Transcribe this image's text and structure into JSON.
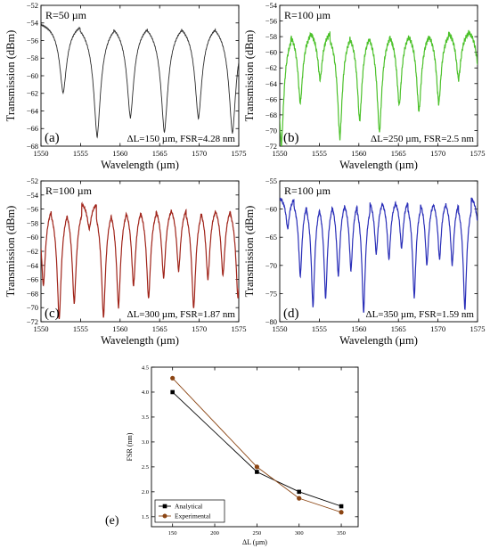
{
  "chart_data": [
    {
      "type": "line",
      "panel_label": "(a)",
      "radius_label": "R=50 µm",
      "annotation": "ΔL=150 µm, FSR=4.28 nm",
      "xlabel": "Wavelength (µm)",
      "ylabel": "Transmission (dBm)",
      "xlim": [
        1550,
        1575
      ],
      "ylim": [
        -68,
        -52
      ],
      "xticks": [
        1550,
        1555,
        1560,
        1565,
        1570,
        1575
      ],
      "yticks": [
        -68,
        -66,
        -64,
        -62,
        -60,
        -58,
        -56,
        -54,
        -52
      ],
      "color": "#2b2b2b",
      "top_level": -53.8,
      "dips": [
        [
          1552.8,
          -62.0
        ],
        [
          1557.1,
          -67.0
        ],
        [
          1561.3,
          -64.8
        ],
        [
          1565.6,
          -66.5
        ],
        [
          1569.9,
          -64.9
        ],
        [
          1574.2,
          -66.6
        ]
      ],
      "dip_width_nm": 0.5,
      "ripple": 0.05
    },
    {
      "type": "line",
      "panel_label": "(b)",
      "radius_label": "R=100 µm",
      "annotation": "ΔL=250 µm, FSR=2.5 nm",
      "xlabel": "Wavelength (µm)",
      "ylabel": "Transmission (dBm)",
      "xlim": [
        1550,
        1575
      ],
      "ylim": [
        -72,
        -54
      ],
      "xticks": [
        1550,
        1555,
        1560,
        1565,
        1570,
        1575
      ],
      "yticks": [
        -72,
        -70,
        -68,
        -66,
        -64,
        -62,
        -60,
        -58,
        -56,
        -54
      ],
      "color": "#4cc12b",
      "top_level": -56.8,
      "dips": [
        [
          1550.2,
          -72.0
        ],
        [
          1552.6,
          -66.5
        ],
        [
          1555.1,
          -63.5
        ],
        [
          1557.6,
          -71.0
        ],
        [
          1560.1,
          -68.8
        ],
        [
          1562.6,
          -70.3
        ],
        [
          1565.1,
          -66.8
        ],
        [
          1567.6,
          -67.6
        ],
        [
          1570.1,
          -66.6
        ],
        [
          1572.6,
          -63.5
        ],
        [
          1575.1,
          -62.0
        ]
      ],
      "dip_width_nm": 0.35,
      "ripple": 0.2
    },
    {
      "type": "line",
      "panel_label": "(c)",
      "radius_label": "R=100 µm",
      "annotation": "ΔL=300 µm, FSR=1.87 nm",
      "xlabel": "Wavelength (µm)",
      "ylabel": "Transmission (dBm)",
      "xlim": [
        1550,
        1575
      ],
      "ylim": [
        -72,
        -52
      ],
      "xticks": [
        1550,
        1555,
        1560,
        1565,
        1570,
        1575
      ],
      "yticks": [
        -72,
        -70,
        -68,
        -66,
        -64,
        -62,
        -60,
        -58,
        -56,
        -54,
        -52
      ],
      "color": "#a0241a",
      "top_level": -54.7,
      "dips": [
        [
          1550.3,
          -67.0
        ],
        [
          1552.3,
          -71.8
        ],
        [
          1554.2,
          -69.5
        ],
        [
          1556.1,
          -58.8
        ],
        [
          1557.9,
          -71.5
        ],
        [
          1559.8,
          -70.0
        ],
        [
          1561.7,
          -67.0
        ],
        [
          1563.6,
          -68.8
        ],
        [
          1565.5,
          -65.8
        ],
        [
          1567.4,
          -64.8
        ],
        [
          1569.3,
          -70.2
        ],
        [
          1571.1,
          -66.0
        ],
        [
          1573.0,
          -65.5
        ],
        [
          1574.9,
          -68.8
        ]
      ],
      "dip_width_nm": 0.3,
      "ripple": 0.1
    },
    {
      "type": "line",
      "panel_label": "(d)",
      "radius_label": "R=100 µm",
      "annotation": "ΔL=350 µm, FSR=1.59 nm",
      "xlabel": "Wavelength (µm)",
      "ylabel": "Transmission (dBm)",
      "xlim": [
        1550,
        1575
      ],
      "ylim": [
        -80,
        -55
      ],
      "xticks": [
        1550,
        1555,
        1560,
        1565,
        1570,
        1575
      ],
      "yticks": [
        -80,
        -75,
        -70,
        -65,
        -60,
        -55
      ],
      "color": "#2a2fb8",
      "top_level": -57.5,
      "dips": [
        [
          1551.0,
          -63.5
        ],
        [
          1552.6,
          -72.0
        ],
        [
          1554.2,
          -77.5
        ],
        [
          1555.8,
          -76.0
        ],
        [
          1557.4,
          -72.0
        ],
        [
          1559.0,
          -71.0
        ],
        [
          1560.6,
          -78.5
        ],
        [
          1562.2,
          -68.0
        ],
        [
          1563.8,
          -69.0
        ],
        [
          1565.4,
          -67.0
        ],
        [
          1567.0,
          -75.8
        ],
        [
          1568.6,
          -70.0
        ],
        [
          1570.2,
          -69.0
        ],
        [
          1571.8,
          -70.0
        ],
        [
          1573.4,
          -78.0
        ],
        [
          1575.0,
          -62.0
        ]
      ],
      "dip_width_nm": 0.25,
      "ripple": 0.15
    },
    {
      "type": "line",
      "panel_label": "(e)",
      "xlabel": "ΔL (µm)",
      "ylabel": "FSR (nm)",
      "xlim": [
        125,
        370
      ],
      "ylim": [
        1.3,
        4.5
      ],
      "xticks": [
        150,
        200,
        250,
        300,
        350
      ],
      "yticks": [
        1.5,
        2.0,
        2.5,
        3.0,
        3.5,
        4.0,
        4.5
      ],
      "ytick_labels": [
        "1.5",
        "2.0",
        "2.5",
        "3.0",
        "3.5",
        "4.0",
        "4.5"
      ],
      "legend_position": "bottom-left",
      "series": [
        {
          "name": "Analytical",
          "x": [
            150,
            250,
            300,
            350
          ],
          "y": [
            4.0,
            2.4,
            2.0,
            1.71
          ],
          "color": "#000000",
          "marker": "square"
        },
        {
          "name": "Experimental",
          "x": [
            150,
            250,
            300,
            350
          ],
          "y": [
            4.28,
            2.5,
            1.87,
            1.59
          ],
          "color": "#8b4513",
          "marker": "circle"
        }
      ]
    }
  ]
}
